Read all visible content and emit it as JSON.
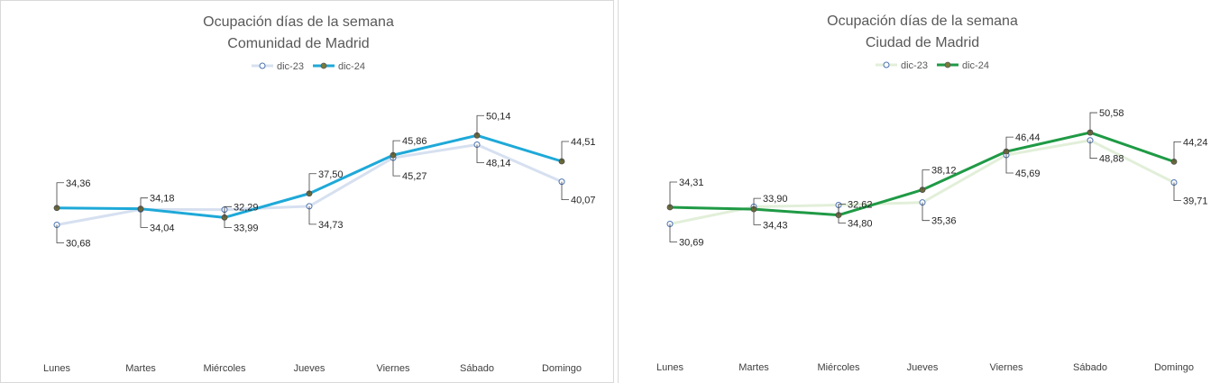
{
  "chart_data": [
    {
      "type": "line",
      "title": "Ocupación días de la semana",
      "subtitle": "Comunidad de Madrid",
      "categories": [
        "Lunes",
        "Martes",
        "Miércoles",
        "Jueves",
        "Viernes",
        "Sábado",
        "Domingo"
      ],
      "legend_position": "top",
      "grid": false,
      "ylim": [
        0,
        60
      ],
      "series": [
        {
          "name": "dic-23",
          "values": [
            30.68,
            34.04,
            33.99,
            34.73,
            45.27,
            48.14,
            40.07
          ],
          "labels": [
            "30,68",
            "34,04",
            "33,99",
            "34,73",
            "45,27",
            "48,14",
            "40,07"
          ],
          "color": "#d6e0f0",
          "marker": "hollow"
        },
        {
          "name": "dic-24",
          "values": [
            34.36,
            34.18,
            32.29,
            37.5,
            45.86,
            50.14,
            44.51
          ],
          "labels": [
            "34,36",
            "34,18",
            "32,29",
            "37,50",
            "45,86",
            "50,14",
            "44,51"
          ],
          "color": "#1ea9d8",
          "marker": "filled"
        }
      ]
    },
    {
      "type": "line",
      "title": "Ocupación días de la semana",
      "subtitle": "Ciudad de Madrid",
      "categories": [
        "Lunes",
        "Martes",
        "Miércoles",
        "Jueves",
        "Viernes",
        "Sábado",
        "Domingo"
      ],
      "legend_position": "top",
      "grid": false,
      "ylim": [
        0,
        60
      ],
      "series": [
        {
          "name": "dic-23",
          "values": [
            30.69,
            34.43,
            34.8,
            35.36,
            45.69,
            48.88,
            39.71
          ],
          "labels": [
            "30,69",
            "34,43",
            "34,80",
            "35,36",
            "45,69",
            "48,88",
            "39,71"
          ],
          "color": "#e2efd9",
          "marker": "hollow"
        },
        {
          "name": "dic-24",
          "values": [
            34.31,
            33.9,
            32.62,
            38.12,
            46.44,
            50.58,
            44.24
          ],
          "labels": [
            "34,31",
            "33,90",
            "32,62",
            "38,12",
            "46,44",
            "50,58",
            "44,24"
          ],
          "color": "#1f9a45",
          "marker": "filled"
        }
      ]
    }
  ]
}
